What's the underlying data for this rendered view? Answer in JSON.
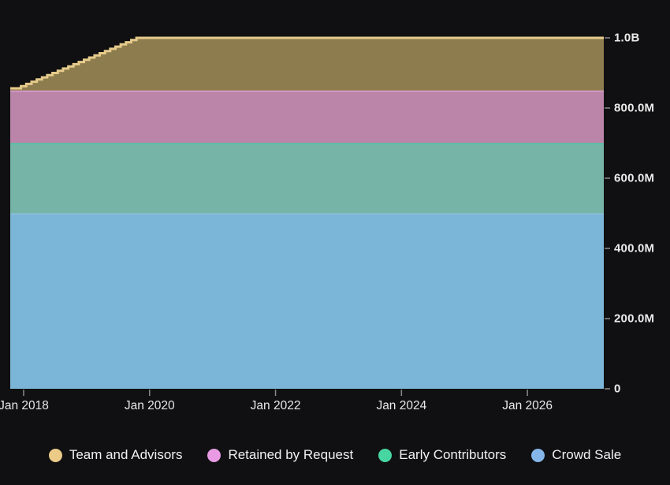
{
  "chart_data": {
    "type": "area",
    "stacked": true,
    "title": "",
    "background": "#101012",
    "grid": false,
    "x_axis": {
      "range_years": [
        2017.7875,
        2027.2125
      ],
      "ticks": [
        {
          "value": 2018,
          "label": "Jan 2018"
        },
        {
          "value": 2020,
          "label": "Jan 2020"
        },
        {
          "value": 2022,
          "label": "Jan 2022"
        },
        {
          "value": 2024,
          "label": "Jan 2024"
        },
        {
          "value": 2026,
          "label": "Jan 2026"
        }
      ]
    },
    "y_axis": {
      "side": "right",
      "range_millions": [
        0,
        1000
      ],
      "ticks": [
        {
          "value": 0,
          "label": "0"
        },
        {
          "value": 200,
          "label": "200.0M"
        },
        {
          "value": 400,
          "label": "400.0M"
        },
        {
          "value": 600,
          "label": "600.0M"
        },
        {
          "value": 800,
          "label": "800.0M"
        },
        {
          "value": 1000,
          "label": "1.0B"
        }
      ]
    },
    "series": [
      {
        "name": "Crowd Sale",
        "type": "constant",
        "value_millions": 500,
        "fill": "#7bb5d7",
        "line": "#8bc0df",
        "legend_dot": "#85b6ea"
      },
      {
        "name": "Early Contributors",
        "type": "constant",
        "value_millions": 200,
        "fill": "#75b4a7",
        "line": "#3fcda3",
        "legend_dot": "#47d6a2"
      },
      {
        "name": "Retained by Request",
        "type": "constant",
        "value_millions": 150,
        "fill": "#bb85a9",
        "line": "#de9fd3",
        "legend_dot": "#e89ae3"
      },
      {
        "name": "Team and Advisors",
        "type": "stepped_vesting",
        "value_millions": 150,
        "vesting": {
          "start_year": 2017.875,
          "initial_millions": 6.25,
          "step_millions": 6.25,
          "interval_years": 0.0833333
        },
        "fill": "#8d7c4e",
        "line": "#e6cb8b",
        "legend_dot": "#ecca87"
      }
    ]
  },
  "legend": {
    "items": [
      {
        "label": "Team and Advisors",
        "color": "#ecca87"
      },
      {
        "label": "Retained by Request",
        "color": "#e89ae3"
      },
      {
        "label": "Early Contributors",
        "color": "#47d6a2"
      },
      {
        "label": "Crowd Sale",
        "color": "#85b6ea"
      }
    ]
  },
  "colors": {
    "background": "#101012",
    "axis_text": "#ebebeb",
    "tick_mark": "#8a8a8a"
  }
}
